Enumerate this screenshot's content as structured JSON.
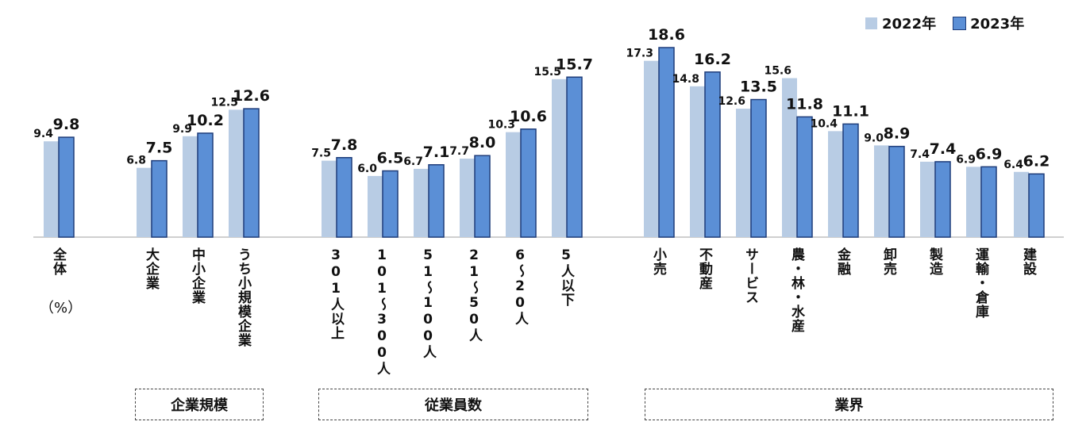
{
  "chart_data": {
    "type": "bar",
    "unit_label": "（%）",
    "ylim": [
      0,
      20
    ],
    "grid": false,
    "legend_position": "top-right",
    "categories": [
      "全体",
      "大企業",
      "中小企業",
      "うち小規模企業",
      "301人以上",
      "101～300人",
      "51～100人",
      "21～50人",
      "6～20人",
      "5人以下",
      "小売",
      "不動産",
      "サービス",
      "農・林・水産",
      "金融",
      "卸売",
      "製造",
      "運輸・倉庫",
      "建設"
    ],
    "series": [
      {
        "name": "2022年",
        "color": "#b8cce4",
        "values": [
          9.4,
          6.8,
          9.9,
          12.5,
          7.5,
          6.0,
          6.7,
          7.7,
          10.3,
          15.5,
          17.3,
          14.8,
          12.6,
          15.6,
          10.4,
          9.0,
          7.4,
          6.9,
          6.4
        ],
        "value_labels": [
          "9.4",
          "6.8",
          "9.9",
          "12.5",
          "7.5",
          "6.0",
          "6.7",
          "7.7",
          "10.3",
          "15.5",
          "17.3",
          "14.8",
          "12.6",
          "15.6",
          "10.4",
          "9.0",
          "7.4",
          "6.9",
          "6.4"
        ]
      },
      {
        "name": "2023年",
        "color": "#5b8fd6",
        "values": [
          9.8,
          7.5,
          10.2,
          12.6,
          7.8,
          6.5,
          7.1,
          8.0,
          10.6,
          15.7,
          18.6,
          16.2,
          13.5,
          11.8,
          11.1,
          8.9,
          7.4,
          6.9,
          6.2
        ],
        "value_labels": [
          "9.8",
          "7.5",
          "10.2",
          "12.6",
          "7.8",
          "6.5",
          "7.1",
          "8.0",
          "10.6",
          "15.7",
          "18.6",
          "16.2",
          "13.5",
          "11.8",
          "11.1",
          "8.9",
          "7.4",
          "6.9",
          "6.2"
        ]
      }
    ],
    "groups": [
      {
        "label": "企業規模",
        "categories": [
          "大企業",
          "中小企業",
          "うち小規模企業"
        ]
      },
      {
        "label": "従業員数",
        "categories": [
          "301人以上",
          "101～300人",
          "51～100人",
          "21～50人",
          "6～20人",
          "5人以下"
        ]
      },
      {
        "label": "業界",
        "categories": [
          "小売",
          "不動産",
          "サービス",
          "農・林・水産",
          "金融",
          "卸売",
          "製造",
          "運輸・倉庫",
          "建設"
        ]
      }
    ]
  }
}
